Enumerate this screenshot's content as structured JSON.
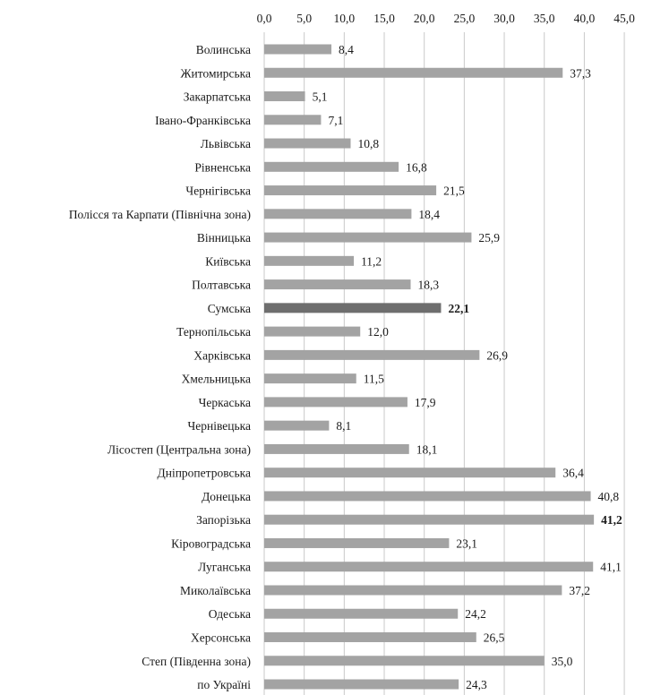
{
  "chart_data": {
    "type": "bar",
    "orientation": "horizontal",
    "title": "",
    "xlabel": "",
    "ylabel": "",
    "xlim": [
      0,
      45
    ],
    "x_ticks": [
      "0,0",
      "5,0",
      "10,0",
      "15,0",
      "20,0",
      "25,0",
      "30,0",
      "35,0",
      "40,0",
      "45,0"
    ],
    "grid": true,
    "axis_position": "top",
    "categories": [
      "Волинська",
      "Житомирська",
      "Закарпатська",
      "Івано-Франківська",
      "Львівська",
      "Рівненська",
      "Чернігівська",
      "Полісся та Карпати (Північна зона)",
      "Вінницька",
      "Київська",
      "Полтавська",
      "Сумська",
      "Тернопільська",
      "Харківська",
      "Хмельницька",
      "Черкаська",
      "Чернівецька",
      "Лісостеп (Центральна зона)",
      "Дніпропетровська",
      "Донецька",
      "Запорізька",
      "Кіровоградська",
      "Луганська",
      "Миколаївська",
      "Одеська",
      "Херсонська",
      "Степ (Південна зона)",
      "по Україні"
    ],
    "values": [
      8.4,
      37.3,
      5.1,
      7.1,
      10.8,
      16.8,
      21.5,
      18.4,
      25.9,
      11.2,
      18.3,
      22.1,
      12.0,
      26.9,
      11.5,
      17.9,
      8.1,
      18.1,
      36.4,
      40.8,
      41.2,
      23.1,
      41.1,
      37.2,
      24.2,
      26.5,
      35.0,
      24.3
    ],
    "value_labels": [
      "8,4",
      "37,3",
      "5,1",
      "7,1",
      "10,8",
      "16,8",
      "21,5",
      "18,4",
      "25,9",
      "11,2",
      "18,3",
      "22,1",
      "12,0",
      "26,9",
      "11,5",
      "17,9",
      "8,1",
      "18,1",
      "36,4",
      "40,8",
      "41,2",
      "23,1",
      "41,1",
      "37,2",
      "24,2",
      "26,5",
      "35,0",
      "24,3"
    ],
    "highlight_indices": [
      11
    ],
    "bold_label_indices": [
      11,
      20
    ],
    "colors": {
      "bar": "#a3a3a3",
      "highlight_bar": "#6e6e6e",
      "grid": "#c9c9c9",
      "text": "#1a1a1a"
    }
  }
}
